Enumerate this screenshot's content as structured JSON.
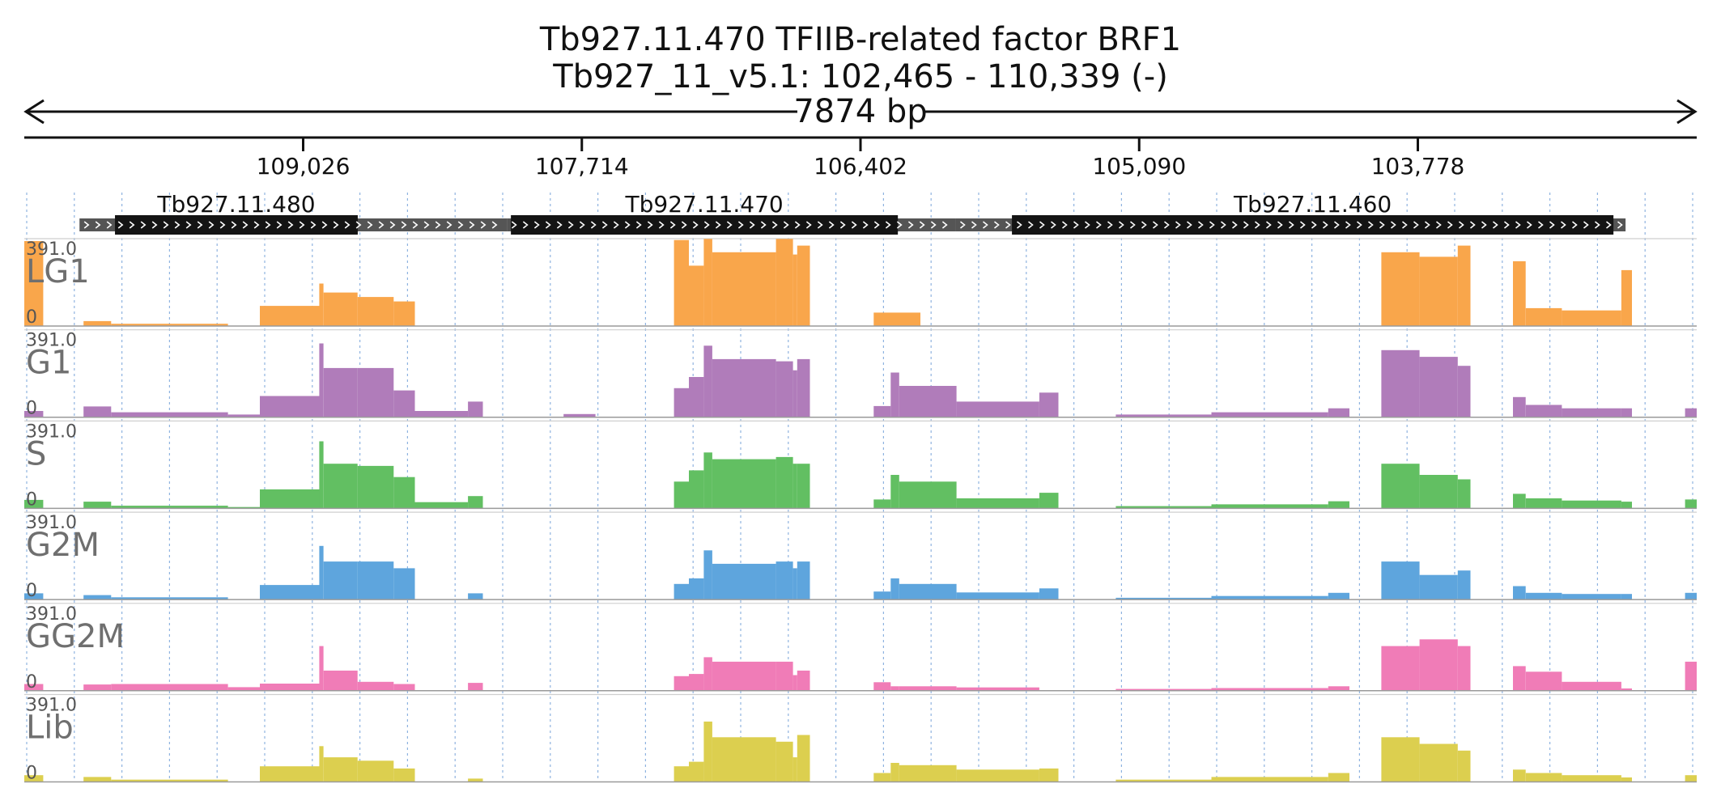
{
  "header": {
    "title_line1": "Tb927.11.470  TFIIB-related factor BRF1",
    "title_line2": "Tb927_11_v5.1: 102,465 - 110,339 (-)",
    "span_label": "7874 bp"
  },
  "chart_data": {
    "type": "area",
    "region": {
      "chromosome": "Tb927_11_v5.1",
      "start": 102465,
      "end": 110339,
      "strand": "-"
    },
    "x_axis": {
      "reversed": true,
      "ticks": [
        109026,
        107714,
        106402,
        105090,
        103778
      ],
      "tick_labels": [
        "109,026",
        "107,714",
        "106,402",
        "105,090",
        "103,778"
      ]
    },
    "genes": [
      {
        "name": "Tb927.11.480",
        "cds": [
          109912,
          108769
        ],
        "arrow_extent": [
          110079,
          108066
        ]
      },
      {
        "name": "Tb927.11.470",
        "cds": [
          108048,
          106226
        ],
        "arrow_extent": [
          108066,
          105954
        ]
      },
      {
        "name": "Tb927.11.460",
        "cds": [
          105689,
          102857
        ],
        "arrow_extent": [
          105954,
          102800
        ]
      }
    ],
    "y_scale": {
      "max_label": "391.0",
      "min_label": "0",
      "ylim": [
        0,
        391
      ]
    },
    "grid": "vertical-dotted",
    "tracks": [
      {
        "name": "LG1",
        "color": "#f9a64b"
      },
      {
        "name": "G1",
        "color": "#b07cba"
      },
      {
        "name": "S",
        "color": "#62bf62"
      },
      {
        "name": "G2M",
        "color": "#5ea5dd"
      },
      {
        "name": "GG2M",
        "color": "#f07cb7"
      },
      {
        "name": "Lib",
        "color": "#dccf4f"
      }
    ],
    "coverage_segments": [
      {
        "start": 110339,
        "end": 110250,
        "LG1": 380,
        "G1": 28,
        "S": 38,
        "G2M": 28,
        "GG2M": 30,
        "Lib": 30
      },
      {
        "start": 110060,
        "end": 109930,
        "LG1": 22,
        "G1": 48,
        "S": 30,
        "G2M": 20,
        "GG2M": 28,
        "Lib": 22
      },
      {
        "start": 109930,
        "end": 109380,
        "LG1": 10,
        "G1": 22,
        "S": 12,
        "G2M": 10,
        "GG2M": 30,
        "Lib": 10
      },
      {
        "start": 109380,
        "end": 109230,
        "LG1": 0,
        "G1": 12,
        "S": 6,
        "G2M": 0,
        "GG2M": 16,
        "Lib": 0
      },
      {
        "start": 109230,
        "end": 108950,
        "LG1": 90,
        "G1": 95,
        "S": 85,
        "G2M": 65,
        "GG2M": 32,
        "Lib": 70
      },
      {
        "start": 108950,
        "end": 108930,
        "LG1": 190,
        "G1": 330,
        "S": 300,
        "G2M": 240,
        "GG2M": 200,
        "Lib": 160
      },
      {
        "start": 108930,
        "end": 108770,
        "LG1": 150,
        "G1": 220,
        "S": 200,
        "G2M": 170,
        "GG2M": 90,
        "Lib": 110
      },
      {
        "start": 108770,
        "end": 108600,
        "LG1": 130,
        "G1": 220,
        "S": 190,
        "G2M": 170,
        "GG2M": 40,
        "Lib": 95
      },
      {
        "start": 108600,
        "end": 108500,
        "LG1": 110,
        "G1": 120,
        "S": 140,
        "G2M": 140,
        "GG2M": 30,
        "Lib": 60
      },
      {
        "start": 108500,
        "end": 108250,
        "LG1": 0,
        "G1": 28,
        "S": 28,
        "G2M": 0,
        "GG2M": 0,
        "Lib": 0
      },
      {
        "start": 108250,
        "end": 108180,
        "LG1": 0,
        "G1": 70,
        "S": 55,
        "G2M": 28,
        "GG2M": 35,
        "Lib": 15
      },
      {
        "start": 107800,
        "end": 107650,
        "LG1": 0,
        "G1": 14,
        "S": 0,
        "G2M": 0,
        "GG2M": 0,
        "Lib": 0
      },
      {
        "start": 107280,
        "end": 107210,
        "LG1": 385,
        "G1": 130,
        "S": 120,
        "G2M": 70,
        "GG2M": 65,
        "Lib": 70
      },
      {
        "start": 107210,
        "end": 107140,
        "LG1": 270,
        "G1": 180,
        "S": 170,
        "G2M": 95,
        "GG2M": 75,
        "Lib": 90
      },
      {
        "start": 107140,
        "end": 107100,
        "LG1": 390,
        "G1": 320,
        "S": 250,
        "G2M": 220,
        "GG2M": 150,
        "Lib": 270
      },
      {
        "start": 107100,
        "end": 106800,
        "LG1": 330,
        "G1": 260,
        "S": 220,
        "G2M": 160,
        "GG2M": 130,
        "Lib": 200
      },
      {
        "start": 106800,
        "end": 106720,
        "LG1": 390,
        "G1": 250,
        "S": 230,
        "G2M": 170,
        "GG2M": 130,
        "Lib": 180
      },
      {
        "start": 106720,
        "end": 106700,
        "LG1": 320,
        "G1": 210,
        "S": 200,
        "G2M": 140,
        "GG2M": 70,
        "Lib": 110
      },
      {
        "start": 106700,
        "end": 106640,
        "LG1": 360,
        "G1": 260,
        "S": 200,
        "G2M": 170,
        "GG2M": 90,
        "Lib": 210
      },
      {
        "start": 106340,
        "end": 106120,
        "LG1": 60,
        "G1": 0,
        "S": 0,
        "G2M": 0,
        "GG2M": 0,
        "Lib": 0
      },
      {
        "start": 106340,
        "end": 106260,
        "LG1": 0,
        "G1": 50,
        "S": 40,
        "G2M": 36,
        "GG2M": 38,
        "Lib": 40
      },
      {
        "start": 106260,
        "end": 106220,
        "LG1": 0,
        "G1": 200,
        "S": 150,
        "G2M": 95,
        "GG2M": 20,
        "Lib": 85
      },
      {
        "start": 106220,
        "end": 105950,
        "LG1": 0,
        "G1": 140,
        "S": 120,
        "G2M": 70,
        "GG2M": 20,
        "Lib": 75
      },
      {
        "start": 105950,
        "end": 105560,
        "LG1": 0,
        "G1": 70,
        "S": 45,
        "G2M": 32,
        "GG2M": 15,
        "Lib": 55
      },
      {
        "start": 105560,
        "end": 105470,
        "LG1": 0,
        "G1": 110,
        "S": 70,
        "G2M": 50,
        "GG2M": 0,
        "Lib": 60
      },
      {
        "start": 105200,
        "end": 104750,
        "LG1": 0,
        "G1": 12,
        "S": 10,
        "G2M": 8,
        "GG2M": 8,
        "Lib": 10
      },
      {
        "start": 104750,
        "end": 104200,
        "LG1": 0,
        "G1": 22,
        "S": 18,
        "G2M": 16,
        "GG2M": 12,
        "Lib": 22
      },
      {
        "start": 104200,
        "end": 104100,
        "LG1": 0,
        "G1": 40,
        "S": 32,
        "G2M": 30,
        "GG2M": 20,
        "Lib": 40
      },
      {
        "start": 103950,
        "end": 103770,
        "LG1": 330,
        "G1": 300,
        "S": 200,
        "G2M": 170,
        "GG2M": 200,
        "Lib": 200
      },
      {
        "start": 103770,
        "end": 103590,
        "LG1": 310,
        "G1": 270,
        "S": 150,
        "G2M": 110,
        "GG2M": 230,
        "Lib": 170
      },
      {
        "start": 103590,
        "end": 103530,
        "LG1": 360,
        "G1": 230,
        "S": 130,
        "G2M": 130,
        "GG2M": 200,
        "Lib": 140
      },
      {
        "start": 103330,
        "end": 103270,
        "LG1": 290,
        "G1": 90,
        "S": 65,
        "G2M": 60,
        "GG2M": 110,
        "Lib": 55
      },
      {
        "start": 103270,
        "end": 103100,
        "LG1": 80,
        "G1": 55,
        "S": 45,
        "G2M": 30,
        "GG2M": 85,
        "Lib": 40
      },
      {
        "start": 103100,
        "end": 102820,
        "LG1": 70,
        "G1": 40,
        "S": 35,
        "G2M": 25,
        "GG2M": 40,
        "Lib": 30
      },
      {
        "start": 102820,
        "end": 102770,
        "LG1": 250,
        "G1": 40,
        "S": 30,
        "G2M": 25,
        "GG2M": 10,
        "Lib": 20
      },
      {
        "start": 102520,
        "end": 102465,
        "LG1": 0,
        "G1": 40,
        "S": 40,
        "G2M": 30,
        "GG2M": 130,
        "Lib": 30
      }
    ]
  }
}
